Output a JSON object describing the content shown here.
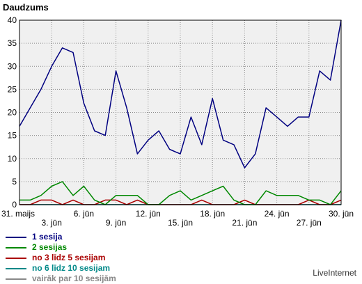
{
  "chart_data": {
    "type": "line",
    "ylabel": "Daudzums",
    "ylim": [
      0,
      40
    ],
    "yticks": [
      0,
      5,
      10,
      15,
      20,
      25,
      30,
      35,
      40
    ],
    "x_count": 31,
    "tick_labels": [
      {
        "index": 0,
        "text": "31. maijs"
      },
      {
        "index": 3,
        "text": "3. jūn"
      },
      {
        "index": 6,
        "text": "6. jūn"
      },
      {
        "index": 9,
        "text": "9. jūn"
      },
      {
        "index": 12,
        "text": "12. jūn"
      },
      {
        "index": 15,
        "text": "15. jūn"
      },
      {
        "index": 18,
        "text": "18. jūn"
      },
      {
        "index": 21,
        "text": "21. jūn"
      },
      {
        "index": 24,
        "text": "24. jūn"
      },
      {
        "index": 27,
        "text": "27. jūn"
      },
      {
        "index": 30,
        "text": "30. jūn"
      }
    ],
    "grid": true,
    "series": [
      {
        "name": "1 sesija",
        "color": "#000080",
        "values": [
          17,
          21,
          25,
          30,
          34,
          33,
          22,
          16,
          15,
          29,
          21,
          11,
          14,
          16,
          12,
          11,
          19,
          13,
          23,
          14,
          13,
          8,
          11,
          21,
          19,
          17,
          19,
          19,
          29,
          27,
          40
        ]
      },
      {
        "name": "2 sesijas",
        "color": "#008800",
        "values": [
          1,
          1,
          2,
          4,
          5,
          2,
          4,
          1,
          0,
          2,
          2,
          2,
          0,
          0,
          2,
          3,
          1,
          2,
          3,
          4,
          1,
          0,
          0,
          3,
          2,
          2,
          2,
          1,
          1,
          0,
          3
        ]
      },
      {
        "name": "no 3 līdz 5 sesijam",
        "color": "#aa0000",
        "values": [
          0,
          0,
          1,
          1,
          0,
          1,
          0,
          0,
          1,
          1,
          0,
          1,
          0,
          0,
          0,
          0,
          0,
          1,
          0,
          0,
          0,
          1,
          0,
          0,
          0,
          0,
          0,
          1,
          0,
          0,
          1
        ]
      },
      {
        "name": "no 6 līdz 10 sesijam",
        "color": "#008888",
        "values": [
          0,
          0,
          0,
          0,
          0,
          0,
          0,
          0,
          0,
          0,
          0,
          0,
          0,
          0,
          0,
          0,
          0,
          0,
          0,
          0,
          0,
          0,
          0,
          0,
          0,
          0,
          0,
          0,
          0,
          0,
          0
        ]
      },
      {
        "name": "vairāk par 10 sesijām",
        "color": "#888888",
        "values": [
          0,
          0,
          0,
          0,
          0,
          0,
          0,
          0,
          0,
          0,
          0,
          0,
          0,
          0,
          0,
          0,
          0,
          0,
          0,
          0,
          0,
          0,
          0,
          0,
          0,
          0,
          0,
          0,
          0,
          0,
          0
        ]
      }
    ]
  },
  "legend": [
    {
      "label": "1 sesija",
      "color": "#000080"
    },
    {
      "label": "2 sesijas",
      "color": "#008800"
    },
    {
      "label": "no 3 līdz 5 sesijam",
      "color": "#aa0000"
    },
    {
      "label": "no 6 līdz 10 sesijam",
      "color": "#008888"
    },
    {
      "label": "vairāk par 10 sesijām",
      "color": "#888888"
    }
  ],
  "brand": "LiveInternet"
}
